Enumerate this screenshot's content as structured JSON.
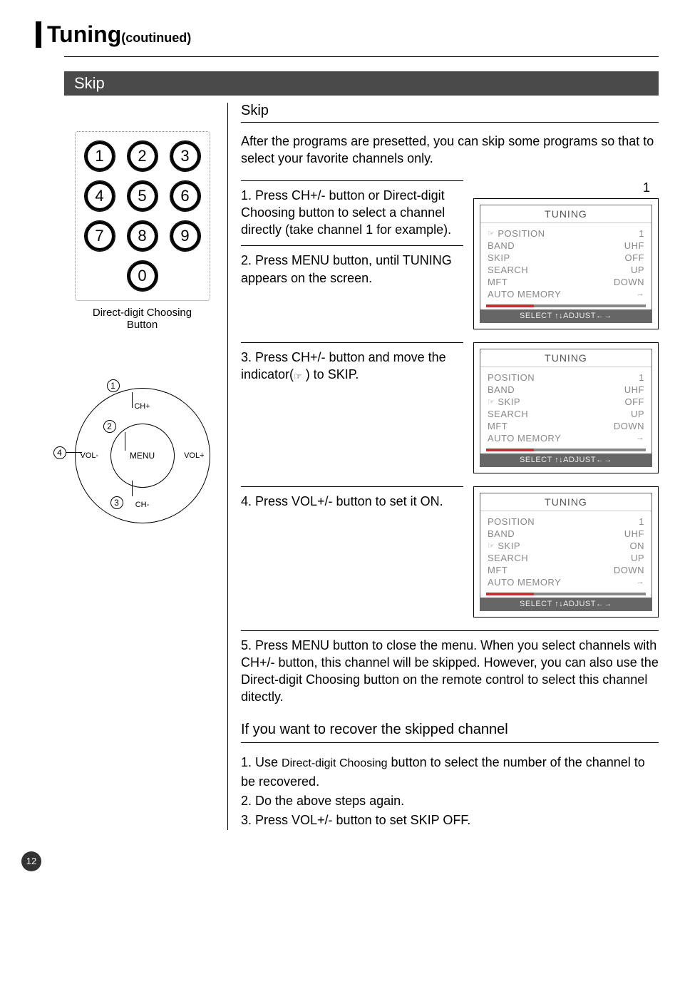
{
  "page": {
    "title_main": "Tuning",
    "title_sub": "(coutinued)",
    "section_bar": "Skip",
    "subhead": "Skip",
    "intro": "After the programs are presetted, you can skip some programs so that to  select  your favorite channels only.",
    "page_number": "12"
  },
  "keypad": {
    "rows": [
      [
        "1",
        "2",
        "3"
      ],
      [
        "4",
        "5",
        "6"
      ],
      [
        "7",
        "8",
        "9"
      ],
      [
        "0"
      ]
    ],
    "label_line1": "Direct-digit Choosing",
    "label_line2": "Button"
  },
  "nav": {
    "center": "MENU",
    "up": "CH+",
    "down": "CH-",
    "left": "VOL-",
    "right": "VOL+",
    "callouts": [
      "1",
      "2",
      "3",
      "4"
    ]
  },
  "steps": {
    "s1": "1. Press CH+/- button or Direct-digit Choosing button to select a channel directly (take channel 1 for example).",
    "s2": "2. Press MENU button, until TUNING appears on the screen.",
    "s3_a": "3. Press CH+/- button and move the indicator(",
    "s3_b": " ) to SKIP.",
    "s4": "4. Press VOL+/- button to set it ON.",
    "s5": "5. Press MENU button to close the menu. When you select channels with CH+/- button, this channel will be skipped. However, you can also use the Direct-digit Choosing button on the remote control to select this channel ditectly."
  },
  "osd_number": "1",
  "osd_title": "TUNING",
  "osd_footer": "SELECT ↑↓ADJUST←→",
  "osd1": {
    "pointer_index": 0,
    "rows": [
      {
        "l": "POSITION",
        "v": "1"
      },
      {
        "l": "BAND",
        "v": "UHF"
      },
      {
        "l": "SKIP",
        "v": "OFF"
      },
      {
        "l": "SEARCH",
        "v": "UP"
      },
      {
        "l": "MFT",
        "v": "DOWN"
      },
      {
        "l": "AUTO MEMORY",
        "v": "→"
      }
    ]
  },
  "osd2": {
    "pointer_index": 2,
    "rows": [
      {
        "l": "POSITION",
        "v": "1"
      },
      {
        "l": "BAND",
        "v": "UHF"
      },
      {
        "l": "SKIP",
        "v": "OFF"
      },
      {
        "l": "SEARCH",
        "v": "UP"
      },
      {
        "l": "MFT",
        "v": "DOWN"
      },
      {
        "l": "AUTO MEMORY",
        "v": "→"
      }
    ]
  },
  "osd3": {
    "pointer_index": 2,
    "rows": [
      {
        "l": "POSITION",
        "v": "1"
      },
      {
        "l": "BAND",
        "v": "UHF"
      },
      {
        "l": "SKIP",
        "v": "ON"
      },
      {
        "l": "SEARCH",
        "v": "UP"
      },
      {
        "l": "MFT",
        "v": "DOWN"
      },
      {
        "l": "AUTO MEMORY",
        "v": "→"
      }
    ]
  },
  "recover": {
    "head": "If you want to recover the skipped channel",
    "r1a": "1. Use ",
    "r1b": "Direct-digit Choosing",
    "r1c": " button to select the number of the channel  to be recovered.",
    "r2": "2. Do the above steps again.",
    "r3": "3. Press VOL+/- button to set SKIP OFF."
  },
  "pointer_glyph": "☞"
}
